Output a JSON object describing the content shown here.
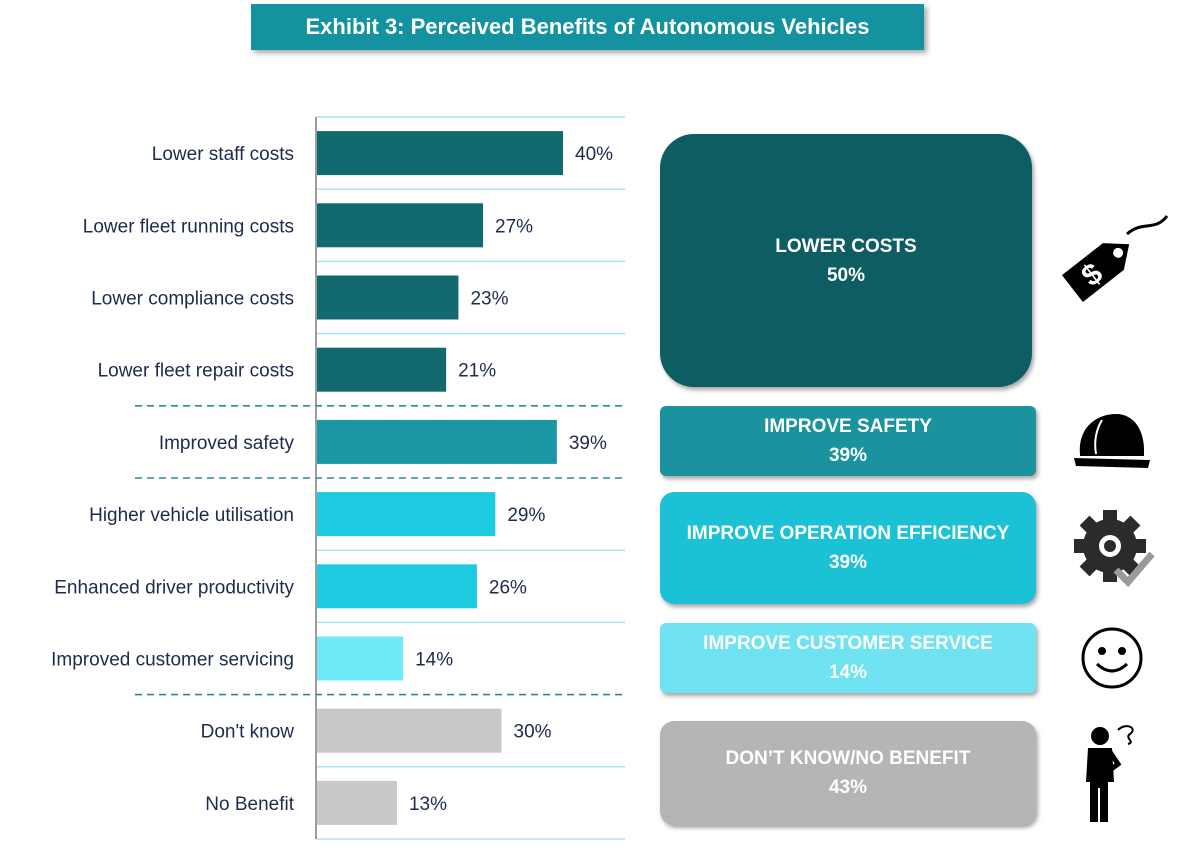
{
  "title": "Exhibit 3: Perceived Benefits of Autonomous Vehicles",
  "chart_data": {
    "type": "bar",
    "orientation": "horizontal",
    "title": "Exhibit 3: Perceived Benefits of Autonomous Vehicles",
    "xlim": [
      0,
      40
    ],
    "categories": [
      "Lower staff costs",
      "Lower fleet running costs",
      "Lower compliance costs",
      "Lower fleet repair costs",
      "Improved safety",
      "Higher vehicle utilisation",
      "Enhanced driver productivity",
      "Improved customer servicing",
      "Don't know",
      "No Benefit"
    ],
    "values": [
      40,
      27,
      23,
      21,
      39,
      29,
      26,
      14,
      30,
      13
    ],
    "value_labels": [
      "40%",
      "27%",
      "23%",
      "21%",
      "39%",
      "29%",
      "26%",
      "14%",
      "30%",
      "13%"
    ],
    "bar_colors": [
      "#126a70",
      "#126a70",
      "#126a70",
      "#126a70",
      "#1a97a3",
      "#1dcadf",
      "#1dcadf",
      "#70eaf8",
      "#c8c8c8",
      "#c8c8c8"
    ]
  },
  "groups": [
    {
      "name": "LOWER COSTS",
      "value": "50%",
      "color": "#0e5d63",
      "icon": "price-tag-dollar-icon"
    },
    {
      "name": "IMPROVE SAFETY",
      "value": "39%",
      "color": "#1a939e",
      "icon": "hard-hat-icon"
    },
    {
      "name": "IMPROVE OPERATION EFFICIENCY",
      "value": "39%",
      "color": "#1bc2d6",
      "icon": "gear-check-icon"
    },
    {
      "name": "IMPROVE CUSTOMER SERVICE",
      "value": "14%",
      "color": "#6fe3f1",
      "icon": "smiley-face-icon"
    },
    {
      "name": "DON’T KNOW/NO BENEFIT",
      "value": "43%",
      "color": "#b5b5b5",
      "icon": "confused-person-icon"
    }
  ]
}
